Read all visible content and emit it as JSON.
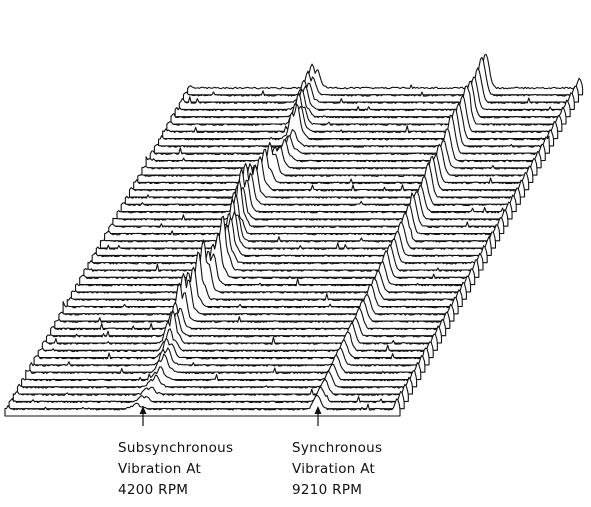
{
  "annotations": [
    {
      "lines": [
        "Subsynchronous",
        "Vibration At",
        "4200 RPM"
      ]
    },
    {
      "lines": [
        "Synchronous",
        "Vibration At",
        "9210 RPM"
      ]
    }
  ]
}
